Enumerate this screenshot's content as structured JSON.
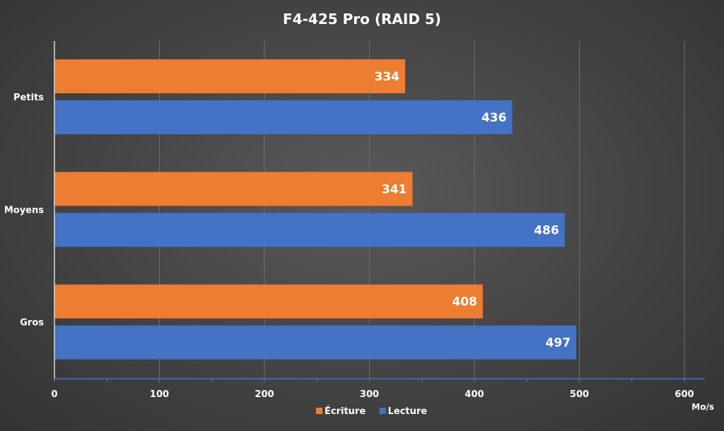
{
  "chart_data": {
    "type": "bar",
    "orientation": "horizontal",
    "title": "F4-425 Pro (RAID 5)",
    "categories": [
      "Petits",
      "Moyens",
      "Gros"
    ],
    "series": [
      {
        "name": "Écriture",
        "color": "#ed7d31",
        "values": [
          334,
          341,
          408
        ]
      },
      {
        "name": "Lecture",
        "color": "#4472c4",
        "values": [
          436,
          486,
          497
        ]
      }
    ],
    "xlabel": "Mo/s",
    "ylabel": "",
    "xlim": [
      0,
      620
    ],
    "xticks": [
      0,
      100,
      200,
      300,
      400,
      500,
      600
    ],
    "grid": true,
    "legend": "bottom",
    "axis_color": "#4472c4"
  }
}
